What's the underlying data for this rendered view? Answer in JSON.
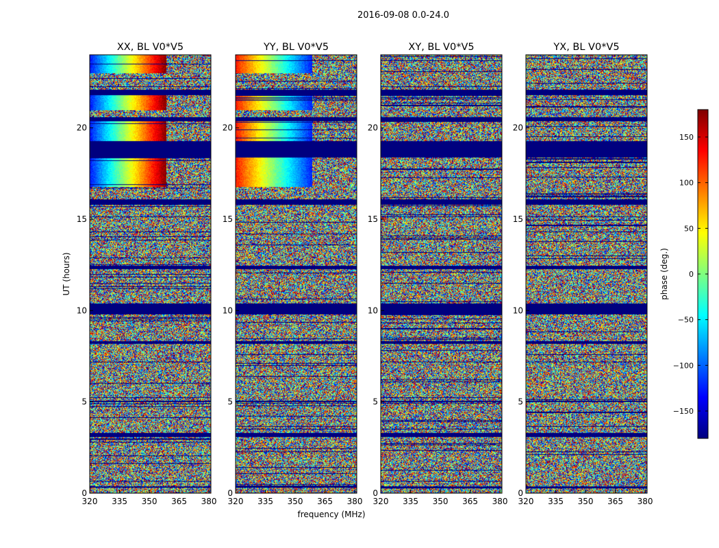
{
  "figure": {
    "suptitle": "2016-09-08 0.0-24.0",
    "xlabel": "frequency (MHz)",
    "ylabel": "UT (hours)"
  },
  "chart_data": {
    "type": "heatmap",
    "title": "2016-09-08 0.0-24.0",
    "xlabel": "frequency (MHz)",
    "ylabel": "UT (hours)",
    "xlim": [
      320,
      381
    ],
    "ylim": [
      0,
      24
    ],
    "xticks": [
      "320",
      "335",
      "350",
      "365",
      "380"
    ],
    "yticks": [
      "0",
      "5",
      "10",
      "15",
      "20"
    ],
    "colormap": "jet",
    "colorbar": {
      "label": "phase (deg.)",
      "range": [
        -180,
        180
      ],
      "ticks": [
        "150",
        "100",
        "50",
        "0",
        "−50",
        "−100",
        "−150"
      ],
      "colors": [
        "#00007f",
        "#0000ff",
        "#00ffff",
        "#7fff7f",
        "#ffff00",
        "#ff0000",
        "#7f0000"
      ]
    },
    "panels": [
      {
        "title": "XX, BL V0*V5",
        "polarization": "XX"
      },
      {
        "title": "YY, BL V0*V5",
        "polarization": "YY"
      },
      {
        "title": "XY, BL V0*V5",
        "polarization": "XY"
      },
      {
        "title": "YX, BL V0*V5",
        "polarization": "YX"
      }
    ],
    "flagged_ut_ranges": [
      [
        18.4,
        19.3
      ],
      [
        9.8,
        10.4
      ],
      [
        15.8,
        16.1
      ],
      [
        20.4,
        20.6
      ],
      [
        21.8,
        22.1
      ],
      [
        8.2,
        8.35
      ],
      [
        12.3,
        12.45
      ],
      [
        3.1,
        3.3
      ],
      [
        5.0,
        5.1
      ],
      [
        0.3,
        0.4
      ]
    ],
    "smooth_phase_ut_ranges": [
      [
        23.0,
        24.0
      ],
      [
        21.0,
        22.0
      ],
      [
        19.3,
        20.4
      ],
      [
        16.8,
        18.4
      ]
    ]
  }
}
